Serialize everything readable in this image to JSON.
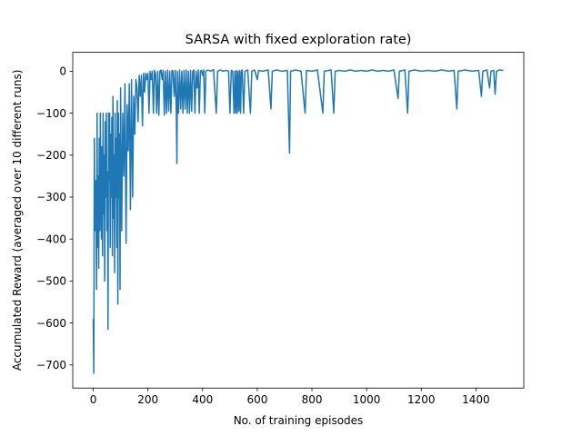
{
  "chart_data": {
    "type": "line",
    "title": "SARSA with fixed exploration rate)",
    "xlabel": "No. of training episodes",
    "ylabel": "Accumulated Reward (averaged over 10 different runs)",
    "xlim": [
      -75,
      1575
    ],
    "ylim": [
      -755,
      45
    ],
    "xticks": [
      0,
      200,
      400,
      600,
      800,
      1000,
      1200,
      1400
    ],
    "yticks": [
      0,
      -100,
      -200,
      -300,
      -400,
      -500,
      -600,
      -700
    ],
    "grid": false,
    "series": [
      {
        "color": "#1f77b4",
        "points": [
          [
            0,
            -590
          ],
          [
            2,
            -720
          ],
          [
            4,
            -160
          ],
          [
            6,
            -380
          ],
          [
            8,
            -260
          ],
          [
            10,
            -300
          ],
          [
            12,
            -520
          ],
          [
            14,
            -100
          ],
          [
            16,
            -420
          ],
          [
            18,
            -250
          ],
          [
            20,
            -470
          ],
          [
            22,
            -160
          ],
          [
            24,
            -380
          ],
          [
            26,
            -100
          ],
          [
            28,
            -300
          ],
          [
            30,
            -400
          ],
          [
            32,
            -180
          ],
          [
            34,
            -440
          ],
          [
            36,
            -100
          ],
          [
            38,
            -340
          ],
          [
            40,
            -200
          ],
          [
            42,
            -500
          ],
          [
            44,
            -120
          ],
          [
            46,
            -300
          ],
          [
            48,
            -100
          ],
          [
            50,
            -380
          ],
          [
            52,
            -240
          ],
          [
            54,
            -615
          ],
          [
            56,
            -100
          ],
          [
            58,
            -260
          ],
          [
            60,
            -100
          ],
          [
            62,
            -420
          ],
          [
            64,
            -150
          ],
          [
            66,
            -300
          ],
          [
            68,
            -110
          ],
          [
            70,
            -440
          ],
          [
            72,
            -60
          ],
          [
            74,
            -350
          ],
          [
            76,
            -200
          ],
          [
            78,
            -480
          ],
          [
            80,
            -100
          ],
          [
            82,
            -300
          ],
          [
            84,
            -160
          ],
          [
            86,
            -420
          ],
          [
            88,
            -70
          ],
          [
            90,
            -555
          ],
          [
            92,
            -100
          ],
          [
            94,
            -300
          ],
          [
            96,
            -150
          ],
          [
            98,
            -520
          ],
          [
            100,
            -40
          ],
          [
            104,
            -380
          ],
          [
            108,
            -100
          ],
          [
            112,
            -250
          ],
          [
            116,
            -30
          ],
          [
            120,
            -410
          ],
          [
            124,
            -80
          ],
          [
            128,
            -190
          ],
          [
            132,
            -30
          ],
          [
            136,
            -330
          ],
          [
            140,
            -20
          ],
          [
            144,
            -300
          ],
          [
            148,
            -60
          ],
          [
            152,
            -150
          ],
          [
            156,
            -20
          ],
          [
            160,
            -40
          ],
          [
            164,
            -120
          ],
          [
            168,
            -10
          ],
          [
            172,
            -60
          ],
          [
            176,
            -10
          ],
          [
            180,
            -130
          ],
          [
            184,
            -5
          ],
          [
            188,
            -50
          ],
          [
            192,
            -5
          ],
          [
            196,
            -20
          ],
          [
            200,
            -5
          ],
          [
            204,
            -100
          ],
          [
            208,
            0
          ],
          [
            212,
            -20
          ],
          [
            216,
            0
          ],
          [
            220,
            -100
          ],
          [
            224,
            2
          ],
          [
            228,
            -5
          ],
          [
            232,
            -100
          ],
          [
            236,
            0
          ],
          [
            240,
            -105
          ],
          [
            244,
            0
          ],
          [
            248,
            3
          ],
          [
            252,
            -20
          ],
          [
            256,
            2
          ],
          [
            260,
            -105
          ],
          [
            264,
            0
          ],
          [
            268,
            -100
          ],
          [
            272,
            3
          ],
          [
            276,
            -95
          ],
          [
            280,
            0
          ],
          [
            284,
            -100
          ],
          [
            288,
            2
          ],
          [
            292,
            0
          ],
          [
            296,
            -60
          ],
          [
            300,
            2
          ],
          [
            304,
            -100
          ],
          [
            306,
            -220
          ],
          [
            308,
            0
          ],
          [
            312,
            -100
          ],
          [
            316,
            3
          ],
          [
            320,
            -90
          ],
          [
            324,
            0
          ],
          [
            328,
            -100
          ],
          [
            332,
            2
          ],
          [
            336,
            -90
          ],
          [
            340,
            3
          ],
          [
            344,
            -100
          ],
          [
            348,
            0
          ],
          [
            352,
            -100
          ],
          [
            356,
            2
          ],
          [
            360,
            -95
          ],
          [
            364,
            0
          ],
          [
            368,
            3
          ],
          [
            372,
            -100
          ],
          [
            376,
            0
          ],
          [
            380,
            -40
          ],
          [
            384,
            3
          ],
          [
            388,
            -100
          ],
          [
            392,
            0
          ],
          [
            396,
            2
          ],
          [
            400,
            -10
          ],
          [
            404,
            3
          ],
          [
            408,
            -100
          ],
          [
            412,
            0
          ],
          [
            420,
            3
          ],
          [
            430,
            0
          ],
          [
            440,
            4
          ],
          [
            450,
            -100
          ],
          [
            455,
            0
          ],
          [
            465,
            3
          ],
          [
            475,
            0
          ],
          [
            485,
            2
          ],
          [
            495,
            0
          ],
          [
            500,
            -100
          ],
          [
            505,
            2
          ],
          [
            510,
            0
          ],
          [
            515,
            -100
          ],
          [
            518,
            0
          ],
          [
            521,
            -100
          ],
          [
            524,
            2
          ],
          [
            527,
            -100
          ],
          [
            530,
            0
          ],
          [
            533,
            -95
          ],
          [
            536,
            2
          ],
          [
            539,
            -100
          ],
          [
            542,
            0
          ],
          [
            545,
            3
          ],
          [
            550,
            -100
          ],
          [
            555,
            0
          ],
          [
            565,
            3
          ],
          [
            575,
            -100
          ],
          [
            580,
            0
          ],
          [
            590,
            3
          ],
          [
            600,
            -20
          ],
          [
            605,
            2
          ],
          [
            620,
            0
          ],
          [
            640,
            3
          ],
          [
            650,
            -90
          ],
          [
            655,
            0
          ],
          [
            670,
            3
          ],
          [
            690,
            0
          ],
          [
            710,
            2
          ],
          [
            718,
            -195
          ],
          [
            722,
            0
          ],
          [
            740,
            3
          ],
          [
            760,
            0
          ],
          [
            775,
            -100
          ],
          [
            780,
            2
          ],
          [
            800,
            0
          ],
          [
            820,
            3
          ],
          [
            840,
            -100
          ],
          [
            845,
            0
          ],
          [
            870,
            3
          ],
          [
            880,
            -100
          ],
          [
            885,
            0
          ],
          [
            900,
            2
          ],
          [
            920,
            0
          ],
          [
            940,
            3
          ],
          [
            960,
            0
          ],
          [
            980,
            2
          ],
          [
            1000,
            0
          ],
          [
            1020,
            3
          ],
          [
            1040,
            0
          ],
          [
            1060,
            2
          ],
          [
            1080,
            0
          ],
          [
            1100,
            3
          ],
          [
            1115,
            -65
          ],
          [
            1120,
            0
          ],
          [
            1140,
            3
          ],
          [
            1150,
            -100
          ],
          [
            1155,
            0
          ],
          [
            1175,
            3
          ],
          [
            1200,
            0
          ],
          [
            1225,
            2
          ],
          [
            1250,
            0
          ],
          [
            1275,
            3
          ],
          [
            1300,
            0
          ],
          [
            1320,
            2
          ],
          [
            1330,
            -90
          ],
          [
            1335,
            0
          ],
          [
            1360,
            3
          ],
          [
            1385,
            0
          ],
          [
            1410,
            2
          ],
          [
            1420,
            -60
          ],
          [
            1425,
            0
          ],
          [
            1440,
            3
          ],
          [
            1450,
            -40
          ],
          [
            1455,
            0
          ],
          [
            1465,
            2
          ],
          [
            1470,
            -55
          ],
          [
            1475,
            0
          ],
          [
            1485,
            3
          ],
          [
            1500,
            2
          ]
        ]
      }
    ]
  }
}
